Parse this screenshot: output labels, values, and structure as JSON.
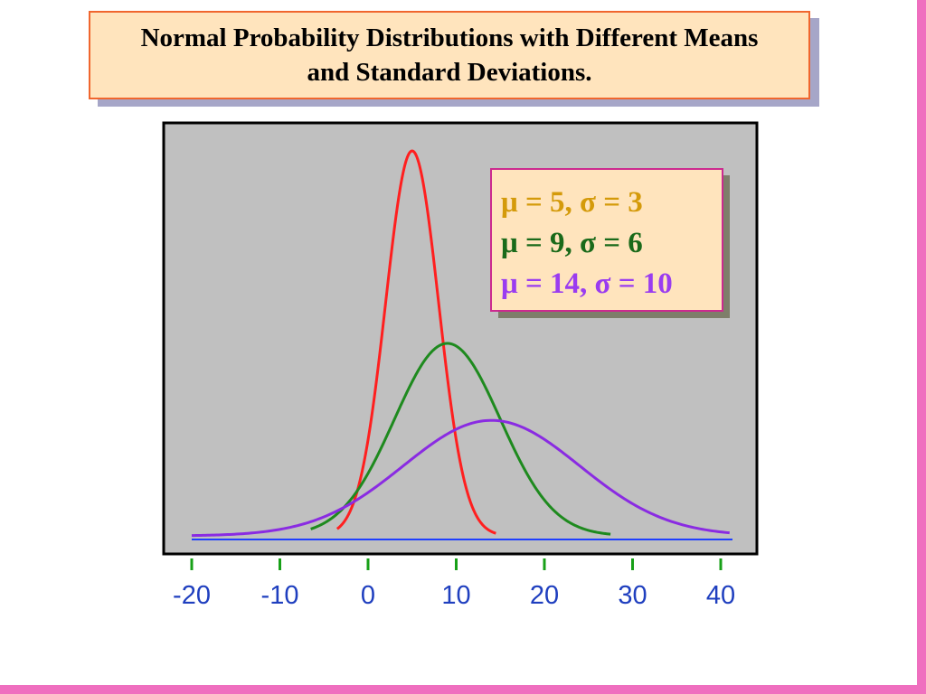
{
  "chart_data": {
    "type": "line",
    "title": "Normal Probability Distributions with Different Means and Standard Deviations.",
    "xlabel": "",
    "ylabel": "",
    "xlim": [
      -20,
      41
    ],
    "x_ticks": [
      -20,
      -10,
      0,
      10,
      20,
      30,
      40
    ],
    "x_tick_labels": [
      "-20",
      "-10",
      "0",
      "10",
      "20",
      "30",
      "40"
    ],
    "grid": false,
    "legend_position": "top-right",
    "series": [
      {
        "name": "μ = 5, σ = 3",
        "mu": 5,
        "sigma": 3,
        "range": [
          -3.5,
          14.5
        ],
        "color": "#ff1f1f"
      },
      {
        "name": "μ = 9, σ = 6",
        "mu": 9,
        "sigma": 6,
        "range": [
          -6.5,
          27.5
        ],
        "color": "#1e8a1e"
      },
      {
        "name": "μ = 14, σ = 10",
        "mu": 14,
        "sigma": 10,
        "range": [
          -20,
          41
        ],
        "color": "#8a2be2"
      }
    ],
    "legend_colors": [
      "#d49a0a",
      "#1a6a1a",
      "#9a3cf0"
    ],
    "baseline_color": "#1f3fff",
    "plot_background": "#c0c0c0",
    "tick_color": "#18a018",
    "tick_label_color": "#1f3fbf"
  }
}
